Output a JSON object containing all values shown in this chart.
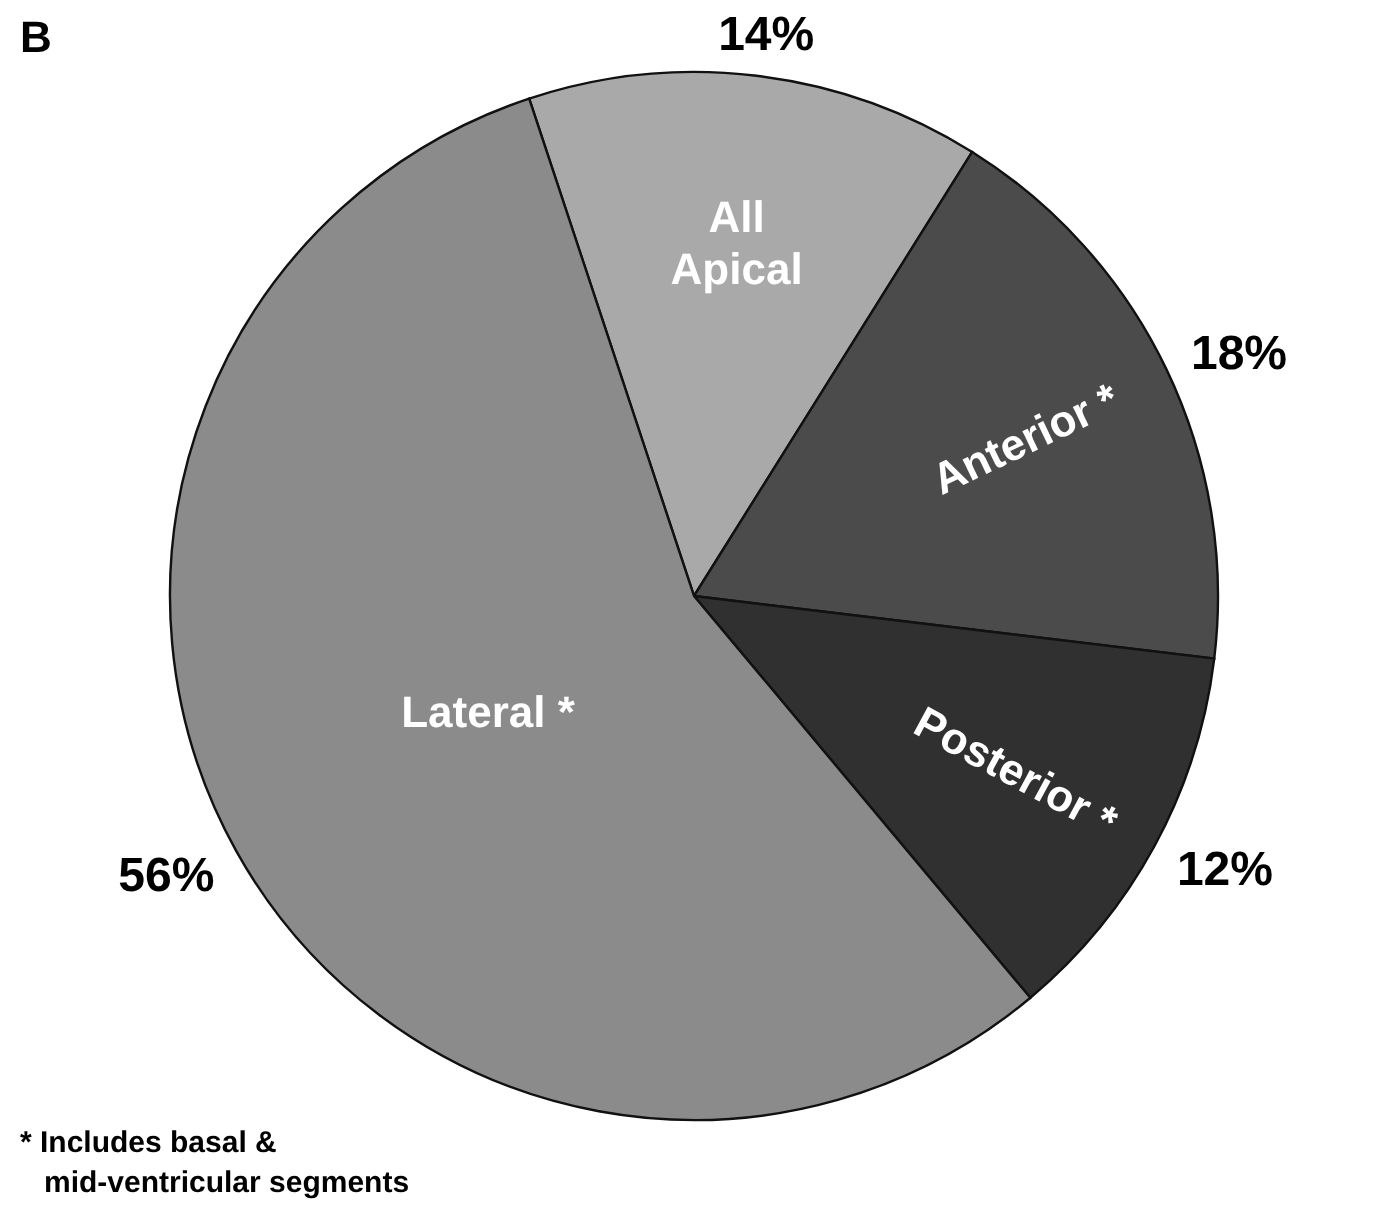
{
  "chart_data": {
    "type": "pie",
    "title": "B",
    "categories": [
      "All Apical",
      "Anterior *",
      "Posterior *",
      "Lateral *"
    ],
    "values": [
      14,
      18,
      12,
      56
    ],
    "colors": [
      "#a9a9a9",
      "#4b4b4b",
      "#303030",
      "#8b8b8b"
    ],
    "value_labels": [
      "14%",
      "18%",
      "12%",
      "56%"
    ],
    "annotations": [
      "* Includes basal &",
      "mid-ventricular segments"
    ]
  }
}
